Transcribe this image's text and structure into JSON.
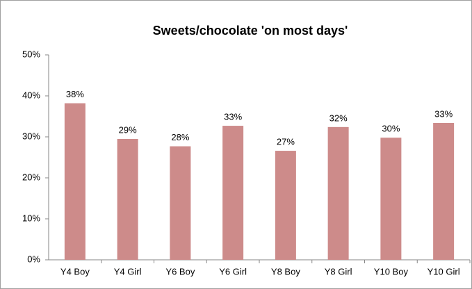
{
  "chart_data": {
    "type": "bar",
    "title": "Sweets/chocolate 'on most days'",
    "categories": [
      "Y4 Boy",
      "Y4 Girl",
      "Y6 Boy",
      "Y6 Girl",
      "Y8 Boy",
      "Y8 Girl",
      "Y10 Boy",
      "Y10 Girl"
    ],
    "values": [
      38.2,
      29.5,
      27.7,
      32.7,
      26.6,
      32.4,
      29.8,
      33.4
    ],
    "value_labels": [
      "38%",
      "29%",
      "28%",
      "33%",
      "27%",
      "32%",
      "30%",
      "33%"
    ],
    "color": "#cd8b8a",
    "ylim": [
      0,
      50
    ],
    "yticks": [
      {
        "value": 0,
        "label": "0%"
      },
      {
        "value": 10,
        "label": "10%"
      },
      {
        "value": 20,
        "label": "20%"
      },
      {
        "value": 30,
        "label": "30%"
      },
      {
        "value": 40,
        "label": "40%"
      },
      {
        "value": 50,
        "label": "50%"
      }
    ],
    "grid": false
  }
}
